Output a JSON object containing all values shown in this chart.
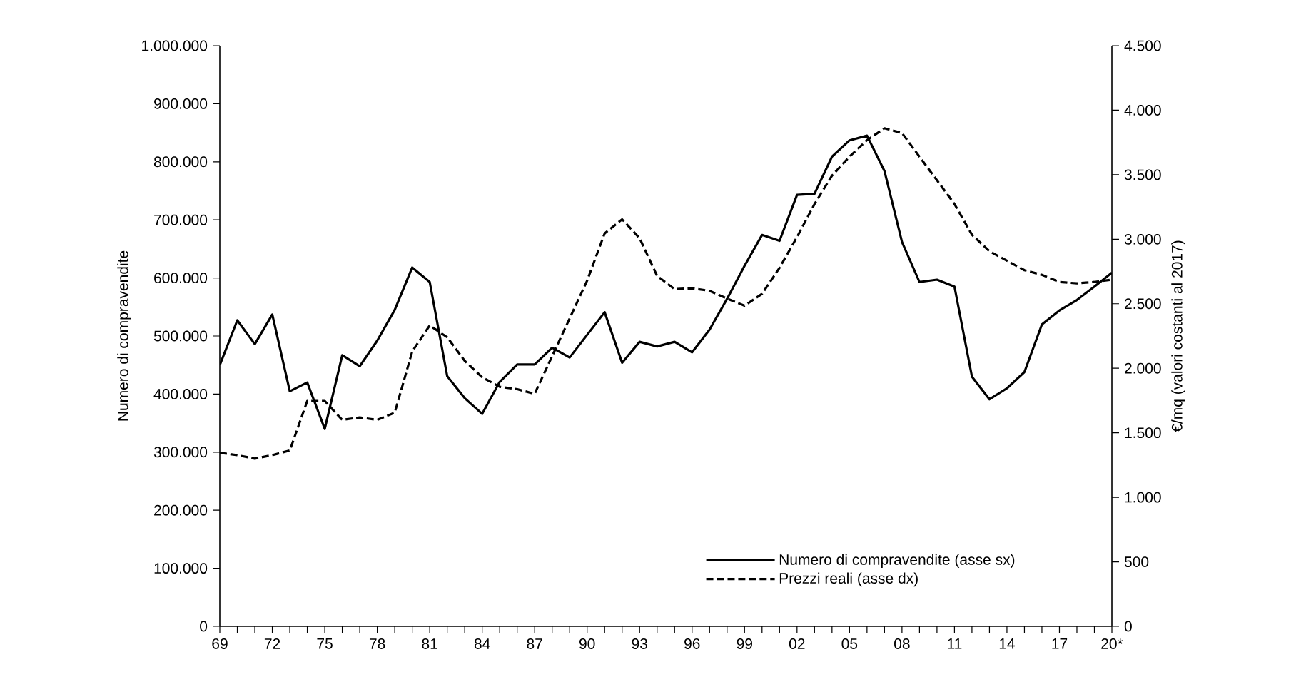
{
  "chart_data": {
    "type": "line",
    "categories": [
      "69",
      null,
      null,
      "72",
      null,
      null,
      "75",
      null,
      null,
      "78",
      null,
      null,
      "81",
      null,
      null,
      "84",
      null,
      null,
      "87",
      null,
      null,
      "90",
      null,
      null,
      "93",
      null,
      null,
      "96",
      null,
      null,
      "99",
      null,
      null,
      "02",
      null,
      null,
      "05",
      null,
      null,
      "08",
      null,
      null,
      "11",
      null,
      null,
      "14",
      null,
      null,
      "17",
      null,
      null,
      "20*"
    ],
    "series": [
      {
        "name": "Numero di compravendite (asse sx)",
        "color": "#000000",
        "line_style": "solid",
        "values": [
          450000,
          527000,
          486000,
          537000,
          405000,
          420000,
          340000,
          467000,
          448000,
          492000,
          545000,
          618000,
          593000,
          431000,
          393000,
          366000,
          421000,
          451000,
          451000,
          480000,
          463000,
          502000,
          541000,
          454000,
          490000,
          482000,
          490000,
          472000,
          511000,
          564000,
          621000,
          674000,
          664000,
          743000,
          745000,
          809000,
          837000,
          845000,
          784000,
          662000,
          593000,
          597000,
          585000,
          430000,
          391000,
          410000,
          438000,
          520000,
          544000,
          562000,
          585000,
          609000
        ]
      },
      {
        "name": "Prezzi reali (asse dx)",
        "color": "#000000",
        "line_style": "dashed",
        "axis": "y2",
        "values": [
          1345,
          1327,
          1300,
          1327,
          1363,
          1747,
          1747,
          1600,
          1619,
          1600,
          1656,
          2130,
          2332,
          2240,
          2058,
          1930,
          1857,
          1838,
          1802,
          2094,
          2386,
          2679,
          3045,
          3154,
          3008,
          2716,
          2613,
          2620,
          2600,
          2540,
          2485,
          2577,
          2779,
          3017,
          3273,
          3493,
          3640,
          3768,
          3860,
          3823,
          3640,
          3457,
          3273,
          3035,
          2907,
          2834,
          2760,
          2724,
          2669,
          2658,
          2669,
          2687
        ]
      }
    ],
    "ylabel": "Numero di compravendite",
    "y2label": "€/mq (valori costanti al 2017)",
    "ylim": [
      0,
      1000000
    ],
    "yticks": [
      0,
      {
        "value": 100000,
        "label": "100.000"
      },
      {
        "value": 200000,
        "label": "200.000"
      },
      {
        "value": 300000,
        "label": "300.000"
      },
      {
        "value": 400000,
        "label": "400.000"
      },
      {
        "value": 500000,
        "label": "500.000"
      },
      {
        "value": 600000,
        "label": "600.000"
      },
      {
        "value": 700000,
        "label": "700.000"
      },
      {
        "value": 800000,
        "label": "800.000"
      },
      {
        "value": 900000,
        "label": "900.000"
      },
      {
        "value": 1000000,
        "label": "1.000.000"
      }
    ],
    "y2lim": [
      0,
      4500
    ],
    "y2ticks": [
      0,
      500,
      {
        "value": 1000,
        "label": "1.000"
      },
      {
        "value": 1500,
        "label": "1.500"
      },
      {
        "value": 2000,
        "label": "2.000"
      },
      {
        "value": 2500,
        "label": "2.500"
      },
      {
        "value": 3000,
        "label": "3.000"
      },
      {
        "value": 3500,
        "label": "3.500"
      },
      {
        "value": 4000,
        "label": "4.000"
      },
      {
        "value": 4500,
        "label": "4.500"
      }
    ],
    "legend": "bottom right"
  }
}
